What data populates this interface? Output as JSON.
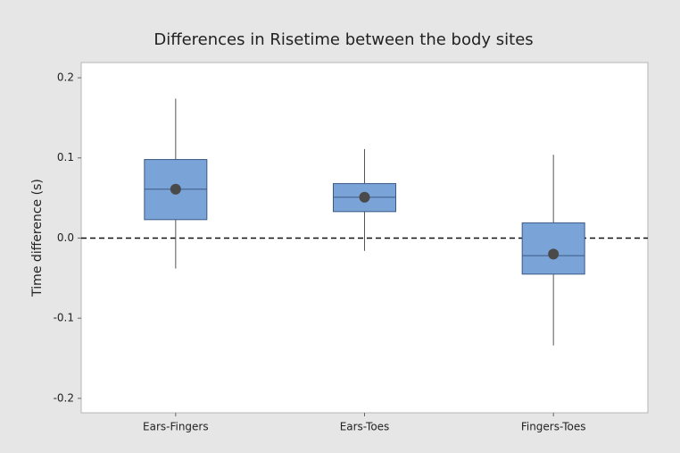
{
  "chart_data": {
    "type": "box",
    "title": "Differences in Risetime between the body sites",
    "y_label": "Time difference (s)",
    "categories": [
      "Ears-Fingers",
      "Ears-Toes",
      "Fingers-Toes"
    ],
    "whisker_high": [
      0.174,
      0.111,
      0.104
    ],
    "q3": [
      0.098,
      0.068,
      0.019
    ],
    "median": [
      0.061,
      0.051,
      -0.022
    ],
    "q1": [
      0.023,
      0.033,
      -0.045
    ],
    "whisker_low": [
      -0.038,
      -0.016,
      -0.134
    ],
    "mean": [
      0.061,
      0.051,
      -0.02
    ],
    "color": "#7aa3d8",
    "reference_line": 0,
    "ylim": [
      -0.218,
      0.219
    ],
    "yticks": [
      -0.2,
      -0.1,
      {
        "value": 0,
        "label": "0.0"
      },
      0.1,
      0.2
    ]
  }
}
